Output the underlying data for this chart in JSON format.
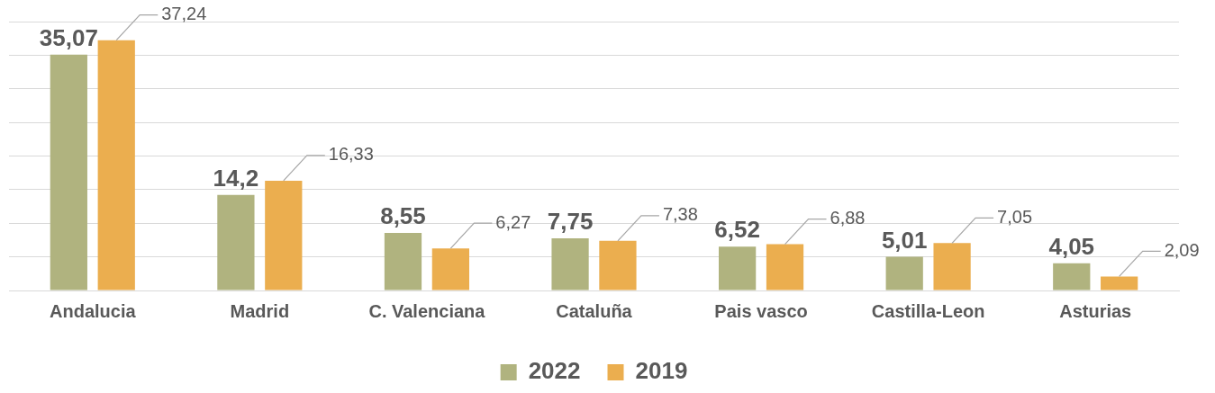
{
  "chart_data": {
    "type": "bar",
    "categories": [
      "Andalucia",
      "Madrid",
      "C. Valenciana",
      "Cataluña",
      "Pais vasco",
      "Castilla-Leon",
      "Asturias"
    ],
    "series": [
      {
        "name": "2022",
        "color": "#b0b37f",
        "values": [
          35.07,
          14.2,
          8.55,
          7.75,
          6.52,
          5.01,
          4.05
        ],
        "value_labels": [
          "35,07",
          "14,2",
          "8,55",
          "7,75",
          "6,52",
          "5,01",
          "4,05"
        ]
      },
      {
        "name": "2019",
        "color": "#ebae4f",
        "values": [
          37.24,
          16.33,
          6.27,
          7.38,
          6.88,
          7.05,
          2.09
        ],
        "value_labels": [
          "37,24",
          "16,33",
          "6,27",
          "7,38",
          "6,88",
          "7,05",
          "2,09"
        ]
      }
    ],
    "ylim": [
      0,
      40
    ],
    "yticks": [
      0,
      5,
      10,
      15,
      20,
      25,
      30,
      35,
      40
    ],
    "grid": "y",
    "tick_labels": "x",
    "legend": "bottom"
  }
}
